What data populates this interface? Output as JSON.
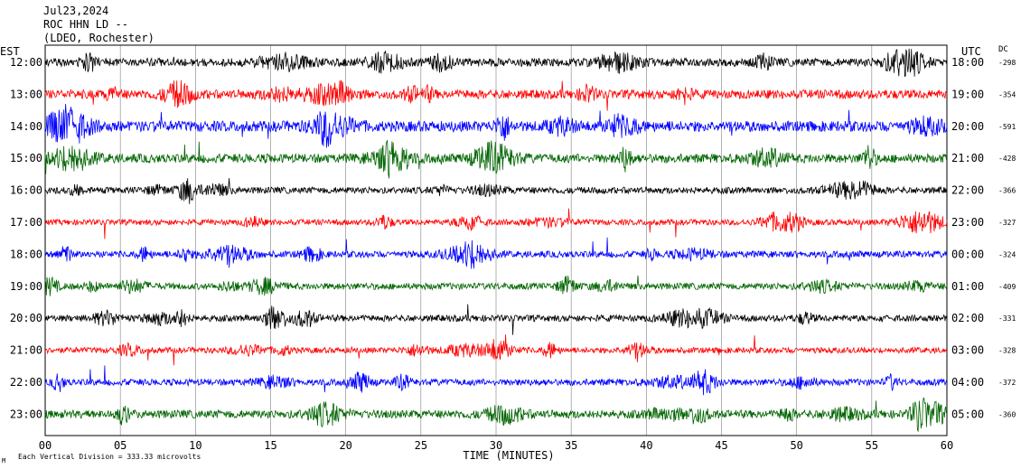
{
  "header": {
    "date": "Jul23,2024",
    "station": "ROC HHN LD --",
    "network": "(LDEO, Rochester)"
  },
  "axes": {
    "left_tz": "EST",
    "right_tz": "UTC",
    "dc_label": "DC",
    "xlabel": "TIME (MINUTES)",
    "x_ticks": [
      "00",
      "05",
      "10",
      "15",
      "20",
      "25",
      "30",
      "35",
      "40",
      "45",
      "50",
      "55",
      "60"
    ],
    "x_range": [
      0,
      60
    ]
  },
  "footer": {
    "mark": "M",
    "scale_text": "Each Vertical Division =  333.33 microvolts"
  },
  "colors": {
    "cycle": [
      "#000000",
      "#ff0000",
      "#0000ff",
      "#006400"
    ],
    "grid": "#808080",
    "background": "#ffffff"
  },
  "chart_data": {
    "type": "line",
    "title": "",
    "xlabel": "TIME (MINUTES)",
    "ylabel": "",
    "xlim": [
      0,
      60
    ],
    "grid": true,
    "rows": [
      {
        "local": "12:00",
        "utc": "18:00",
        "dc": "-298",
        "color": "#000000",
        "activity": 1.0
      },
      {
        "local": "13:00",
        "utc": "19:00",
        "dc": "-354",
        "color": "#ff0000",
        "activity": 1.1
      },
      {
        "local": "14:00",
        "utc": "20:00",
        "dc": "-591",
        "color": "#0000ff",
        "activity": 1.3
      },
      {
        "local": "15:00",
        "utc": "21:00",
        "dc": "-428",
        "color": "#006400",
        "activity": 1.1
      },
      {
        "local": "16:00",
        "utc": "22:00",
        "dc": "-366",
        "color": "#000000",
        "activity": 0.8
      },
      {
        "local": "17:00",
        "utc": "23:00",
        "dc": "-327",
        "color": "#ff0000",
        "activity": 0.7
      },
      {
        "local": "18:00",
        "utc": "00:00",
        "dc": "-324",
        "color": "#0000ff",
        "activity": 0.8
      },
      {
        "local": "19:00",
        "utc": "01:00",
        "dc": "-409",
        "color": "#006400",
        "activity": 0.8
      },
      {
        "local": "20:00",
        "utc": "02:00",
        "dc": "-331",
        "color": "#000000",
        "activity": 0.8
      },
      {
        "local": "21:00",
        "utc": "03:00",
        "dc": "-328",
        "color": "#ff0000",
        "activity": 0.7
      },
      {
        "local": "22:00",
        "utc": "04:00",
        "dc": "-372",
        "color": "#0000ff",
        "activity": 0.8
      },
      {
        "local": "23:00",
        "utc": "05:00",
        "dc": "-360",
        "color": "#006400",
        "activity": 1.0
      }
    ]
  }
}
